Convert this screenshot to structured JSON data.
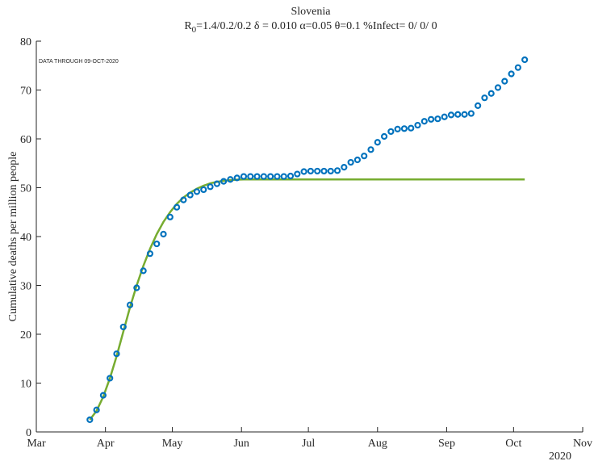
{
  "chart_data": {
    "type": "line",
    "title": "Slovenia",
    "subtitle_parts": [
      "R",
      "0",
      "=1.4/0.2/0.2  δ = 0.010  α=0.05  θ=0.1  %Infect= 0/ 0/ 0"
    ],
    "annotation": "DATA THROUGH 09-OCT-2020",
    "ylabel": "Cumulative deaths per million people",
    "xlabel": "2020",
    "x": [
      24,
      27,
      30,
      33,
      36,
      39,
      42,
      45,
      48,
      51,
      54,
      57,
      60,
      63,
      66,
      69,
      72,
      75,
      78,
      81,
      84,
      87,
      90,
      93,
      96,
      99,
      102,
      105,
      108,
      111,
      114,
      117,
      120,
      123,
      126,
      129,
      132,
      135,
      138,
      141,
      144,
      147,
      150,
      153,
      156,
      159,
      162,
      165,
      168,
      171,
      174,
      177,
      180,
      183,
      186,
      189,
      192,
      195,
      198,
      201,
      204,
      207,
      210,
      213,
      216,
      219
    ],
    "series": [
      {
        "color": "#77ac30",
        "style": "line",
        "values": [
          2.5,
          4.3,
          7.2,
          11,
          15.5,
          20.5,
          25.5,
          30,
          34,
          37.5,
          40.5,
          43,
          45,
          46.7,
          48,
          49,
          49.8,
          50.4,
          50.9,
          51.2,
          51.4,
          51.55,
          51.65,
          51.7,
          51.7,
          51.7,
          51.7,
          51.7,
          51.7,
          51.7,
          51.7,
          51.7,
          51.7,
          51.7,
          51.7,
          51.7,
          51.7,
          51.7,
          51.7,
          51.7,
          51.7,
          51.7,
          51.7,
          51.7,
          51.7,
          51.7,
          51.7,
          51.7,
          51.7,
          51.7,
          51.7,
          51.7,
          51.7,
          51.7,
          51.7,
          51.7,
          51.7,
          51.7,
          51.7,
          51.7,
          51.7,
          51.7,
          51.7,
          51.7,
          51.7,
          51.7
        ]
      },
      {
        "color": "#0072bd",
        "style": "markers",
        "values": [
          2.5,
          4.5,
          7.5,
          11,
          16,
          21.5,
          26,
          29.5,
          33,
          36.5,
          38.5,
          40.5,
          44,
          46,
          47.5,
          48.5,
          49.2,
          49.6,
          50.2,
          50.8,
          51.3,
          51.7,
          52,
          52.3,
          52.3,
          52.3,
          52.3,
          52.3,
          52.3,
          52.3,
          52.4,
          52.8,
          53.3,
          53.4,
          53.4,
          53.4,
          53.4,
          53.5,
          54.2,
          55.2,
          55.7,
          56.5,
          57.8,
          59.3,
          60.5,
          61.5,
          62,
          62.1,
          62.2,
          62.8,
          63.6,
          64,
          64.1,
          64.5,
          64.9,
          65,
          65,
          65.2,
          66.8,
          68.4,
          69.3,
          70.5,
          71.8,
          73.3,
          74.6,
          76.2
        ]
      }
    ],
    "xlim": [
      0,
      245
    ],
    "xticks": [
      {
        "value": 0,
        "label": "Mar"
      },
      {
        "value": 31,
        "label": "Apr"
      },
      {
        "value": 61,
        "label": "May"
      },
      {
        "value": 92,
        "label": "Jun"
      },
      {
        "value": 122,
        "label": "Jul"
      },
      {
        "value": 153,
        "label": "Aug"
      },
      {
        "value": 184,
        "label": "Sep"
      },
      {
        "value": 214,
        "label": "Oct"
      },
      {
        "value": 245,
        "label": "Nov"
      }
    ],
    "ylim": [
      0,
      80
    ],
    "yticks": [
      0,
      10,
      20,
      30,
      40,
      50,
      60,
      70,
      80
    ],
    "grid": false
  }
}
